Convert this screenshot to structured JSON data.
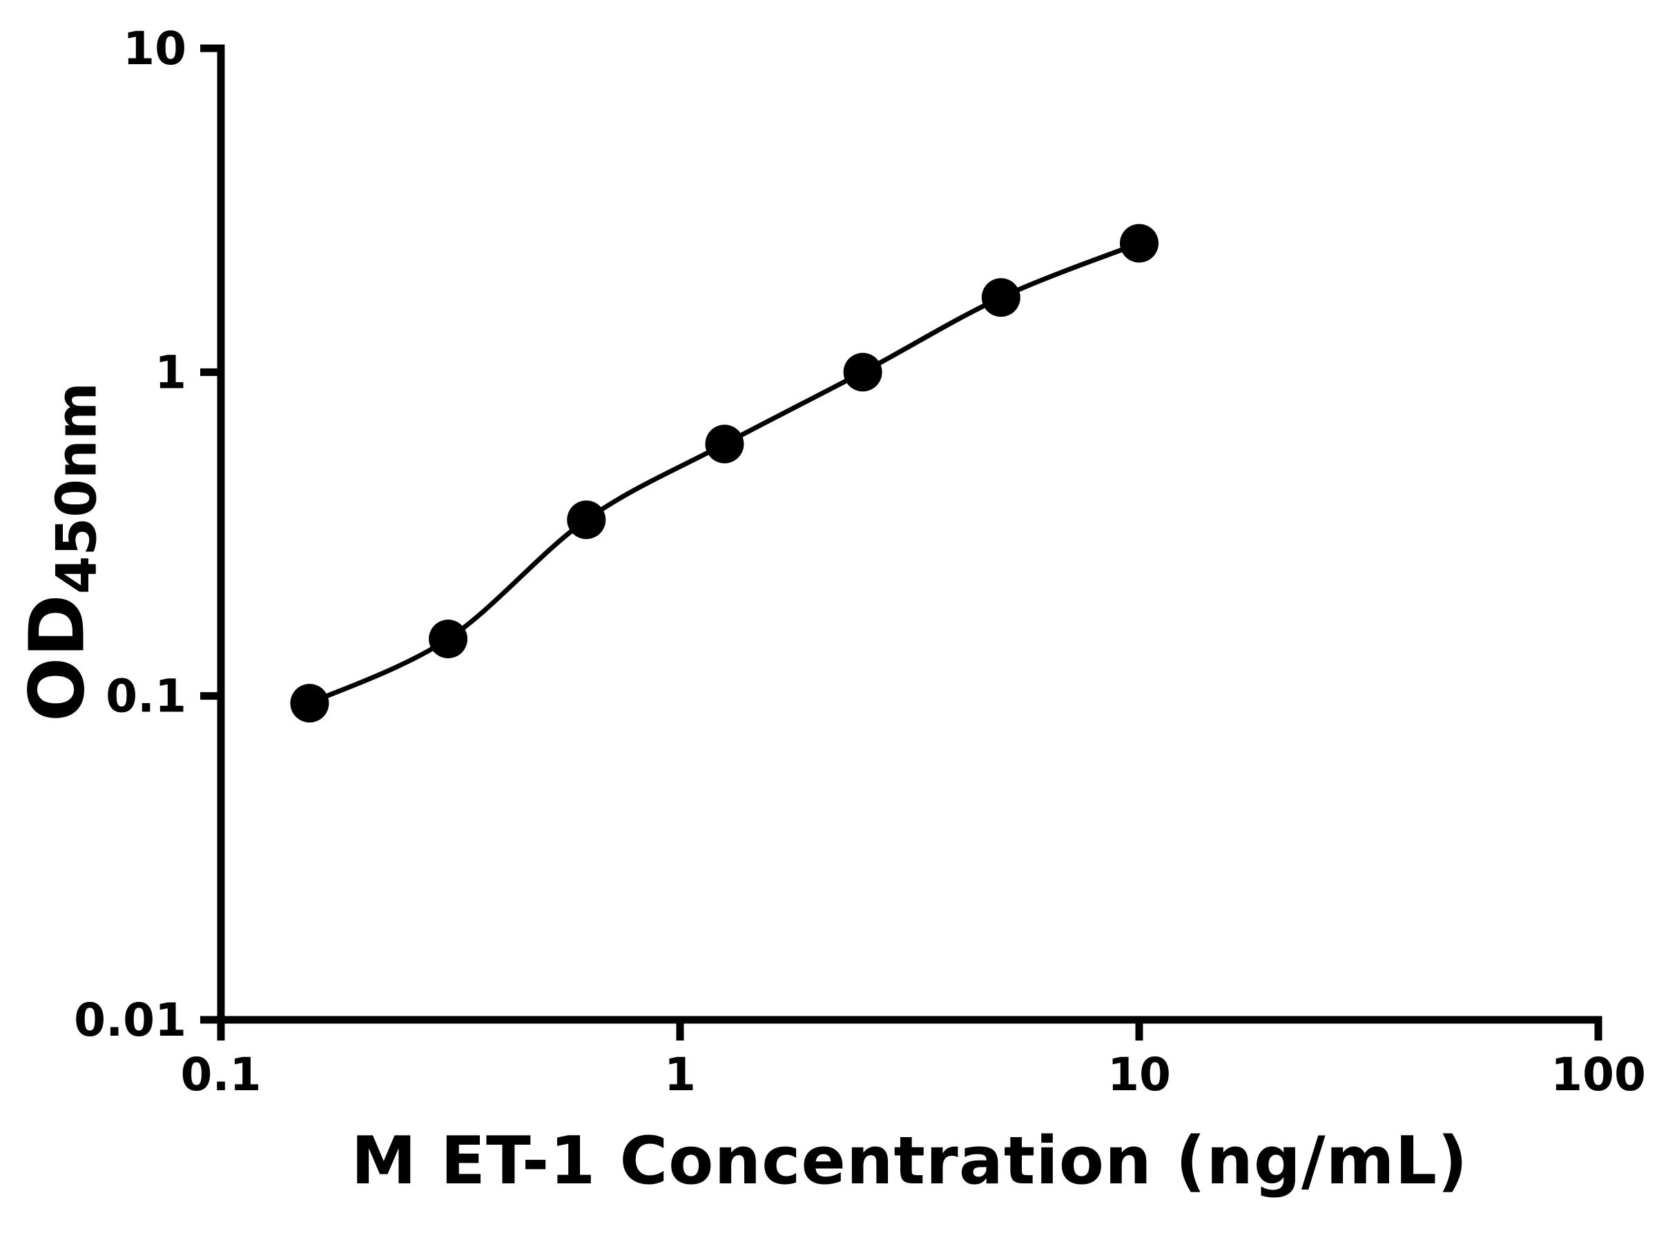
{
  "page": {
    "background": "#ffffff",
    "foreground": "#000000"
  },
  "chart_data": {
    "type": "scatter",
    "title": "",
    "xlabel": "M ET-1 Concentration (ng/mL)",
    "ylabel": "OD450nm",
    "ylabel_main": "OD",
    "ylabel_sub": "450nm",
    "x_scale": "log",
    "y_scale": "log",
    "xlim": [
      0.1,
      100
    ],
    "ylim": [
      0.01,
      10
    ],
    "x_tick_values": [
      0.1,
      1,
      10,
      100
    ],
    "x_tick_labels": [
      "0.1",
      "1",
      "10",
      "100"
    ],
    "y_tick_values": [
      0.01,
      0.1,
      1,
      10
    ],
    "y_tick_labels": [
      "0.01",
      "0.1",
      "1",
      "10"
    ],
    "grid": false,
    "legend": null,
    "axis_color": "#000000",
    "series": [
      {
        "marker": "circle",
        "marker_color": "#000000",
        "line_color": "#000000",
        "line_style": "smooth",
        "points": [
          {
            "x": 0.156,
            "y": 0.095
          },
          {
            "x": 0.3125,
            "y": 0.15
          },
          {
            "x": 0.625,
            "y": 0.35
          },
          {
            "x": 1.25,
            "y": 0.6
          },
          {
            "x": 2.5,
            "y": 1.0
          },
          {
            "x": 5.0,
            "y": 1.7
          },
          {
            "x": 10.0,
            "y": 2.5
          }
        ]
      }
    ]
  }
}
